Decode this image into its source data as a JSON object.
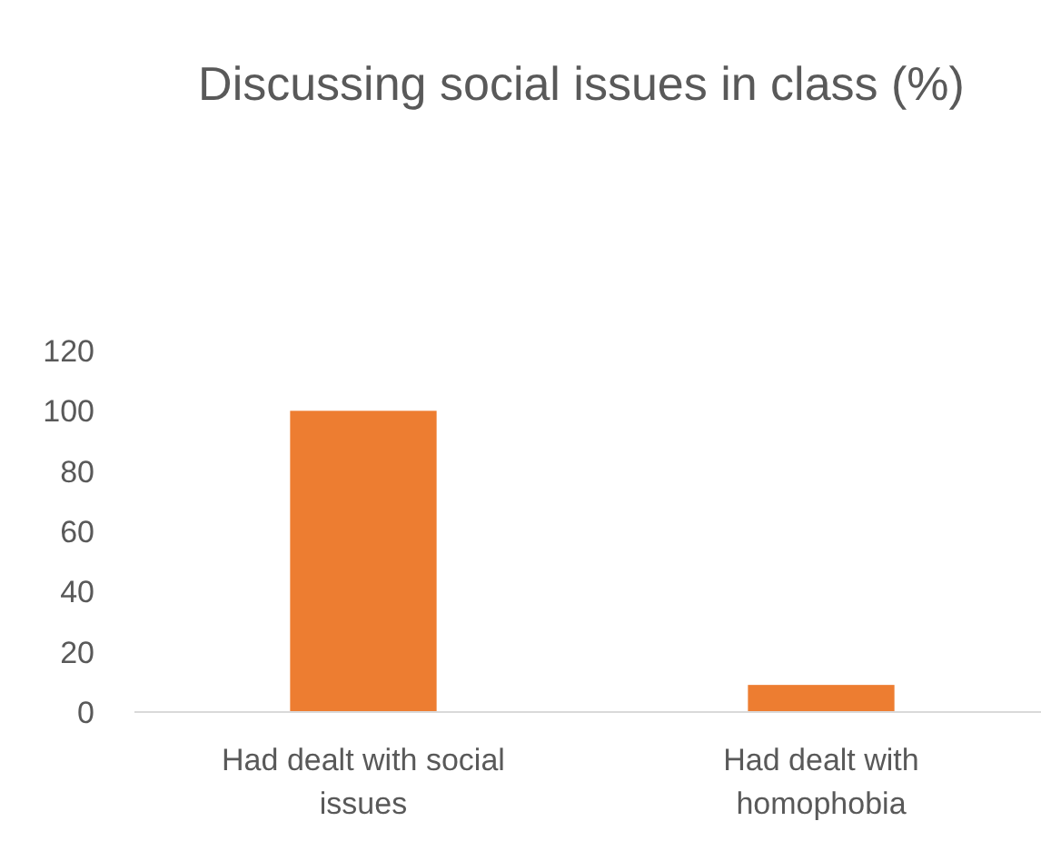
{
  "chart_data": {
    "type": "bar",
    "title": "Discussing social issues in class (%)",
    "categories": [
      "Had dealt with social issues",
      "Had dealt with homophobia"
    ],
    "values": [
      100,
      9
    ],
    "color": "#ed7d31",
    "ylim": [
      0,
      120
    ],
    "yticks": [
      0,
      20,
      40,
      60,
      80,
      100,
      120
    ],
    "grid": false
  }
}
